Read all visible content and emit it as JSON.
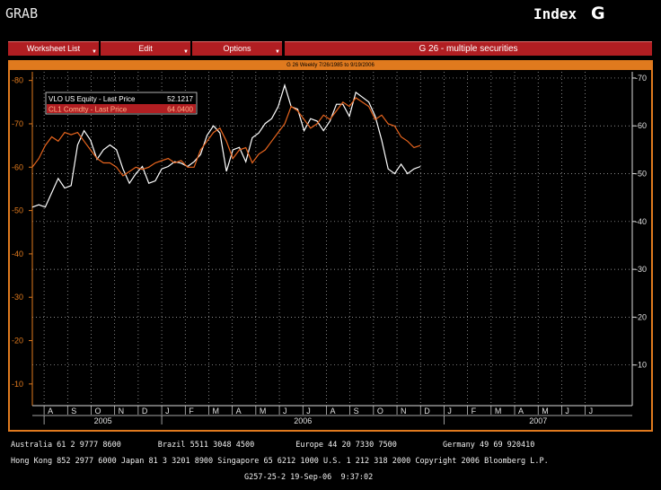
{
  "header": {
    "left_label": "GRAB",
    "index_label": "Index",
    "g_label": "G"
  },
  "menu": {
    "worksheet_list": "Worksheet List",
    "edit": "Edit",
    "options": "Options",
    "title": "G 26 - multiple securities"
  },
  "chart_subtitle": "G 26 Weekly 7/26/1985 to 9/19/2006",
  "colors": {
    "vlo": "#ffffff",
    "cl1": "#e8651e",
    "frame": "#e07a1e",
    "menu": "#b11e22",
    "left_axis": "#e07a1e"
  },
  "chart_data": {
    "type": "line",
    "legend_placement": "top-left",
    "grid": true,
    "left_axis": {
      "ticks": [
        10,
        20,
        30,
        40,
        50,
        60,
        70,
        80
      ],
      "range": [
        5,
        82
      ]
    },
    "right_axis": {
      "ticks": [
        10,
        20,
        30,
        40,
        50,
        60,
        70
      ],
      "range": [
        1.5,
        71.3
      ]
    },
    "x_month_labels": [
      "A",
      "S",
      "O",
      "N",
      "D",
      "J",
      "F",
      "M",
      "A",
      "M",
      "J",
      "J",
      "A",
      "S",
      "O",
      "N",
      "D",
      "J",
      "F",
      "M",
      "A",
      "M",
      "J",
      "J"
    ],
    "x_year_labels": [
      "2005",
      "2006",
      "2007"
    ],
    "series": [
      {
        "name": "VLO  US Equity - Last Price",
        "last_value": "52.1217",
        "axis": "right",
        "x": [
          0,
          1,
          2,
          3,
          4,
          5,
          6,
          7,
          8,
          9,
          10,
          11,
          12,
          13,
          14,
          15,
          16,
          17,
          18,
          19,
          20,
          21,
          22,
          23,
          24,
          25,
          26,
          27,
          28,
          29,
          30,
          31,
          32,
          33,
          34,
          35,
          36,
          37,
          38,
          39,
          40,
          41,
          42,
          43,
          44,
          45,
          46,
          47,
          48,
          49,
          50,
          51,
          52,
          53,
          54,
          55,
          56,
          57,
          58,
          59,
          60
        ],
        "y": [
          43,
          43.5,
          43,
          46,
          49,
          47,
          47.5,
          56,
          59,
          57,
          53,
          55,
          56,
          55,
          51,
          48,
          50,
          51.5,
          48,
          48.5,
          51,
          51.5,
          52.5,
          52.2,
          51.5,
          52.5,
          54,
          58,
          60,
          58.5,
          50.5,
          55,
          55.5,
          52.5,
          57.5,
          58.5,
          60.5,
          61.5,
          64,
          68.5,
          64,
          63.5,
          59,
          61.5,
          61,
          59,
          61,
          64.5,
          64.5,
          62,
          67,
          66,
          65,
          62,
          57,
          51,
          50,
          52,
          50,
          51,
          51.5
        ]
      },
      {
        "name": "CL1  Comdty - Last Price",
        "last_value": "64.0400",
        "axis": "left",
        "x": [
          0,
          1,
          2,
          3,
          4,
          5,
          6,
          7,
          8,
          9,
          10,
          11,
          12,
          13,
          14,
          15,
          16,
          17,
          18,
          19,
          20,
          21,
          22,
          23,
          24,
          25,
          26,
          27,
          28,
          29,
          30,
          31,
          32,
          33,
          34,
          35,
          36,
          37,
          38,
          39,
          40,
          41,
          42,
          43,
          44,
          45,
          46,
          47,
          48,
          49,
          50,
          51,
          52,
          53,
          54,
          55,
          56,
          57,
          58,
          59,
          60
        ],
        "y": [
          60,
          62,
          65,
          67,
          66,
          68,
          67.5,
          68,
          66,
          64,
          62,
          61,
          61,
          60,
          58,
          59,
          60,
          59.5,
          60,
          61,
          61.5,
          62,
          61,
          61.5,
          60,
          60,
          64,
          66,
          68,
          69,
          66,
          62,
          64,
          64.5,
          61,
          63,
          64,
          66,
          68,
          70,
          74,
          73,
          71,
          69,
          70,
          72,
          71,
          73,
          75,
          74,
          76,
          75,
          74,
          71,
          72,
          70,
          69.5,
          67,
          66,
          64.5,
          65
        ]
      }
    ]
  },
  "footer": {
    "line1": "Australia 61 2 9777 8600        Brazil 5511 3048 4500         Europe 44 20 7330 7500          Germany 49 69 920410",
    "line2": "Hong Kong 852 2977 6000 Japan 81 3 3201 8900 Singapore 65 6212 1000 U.S. 1 212 318 2000 Copyright 2006 Bloomberg L.P.",
    "line3": "G257-25-2 19-Sep-06  9:37:02"
  }
}
